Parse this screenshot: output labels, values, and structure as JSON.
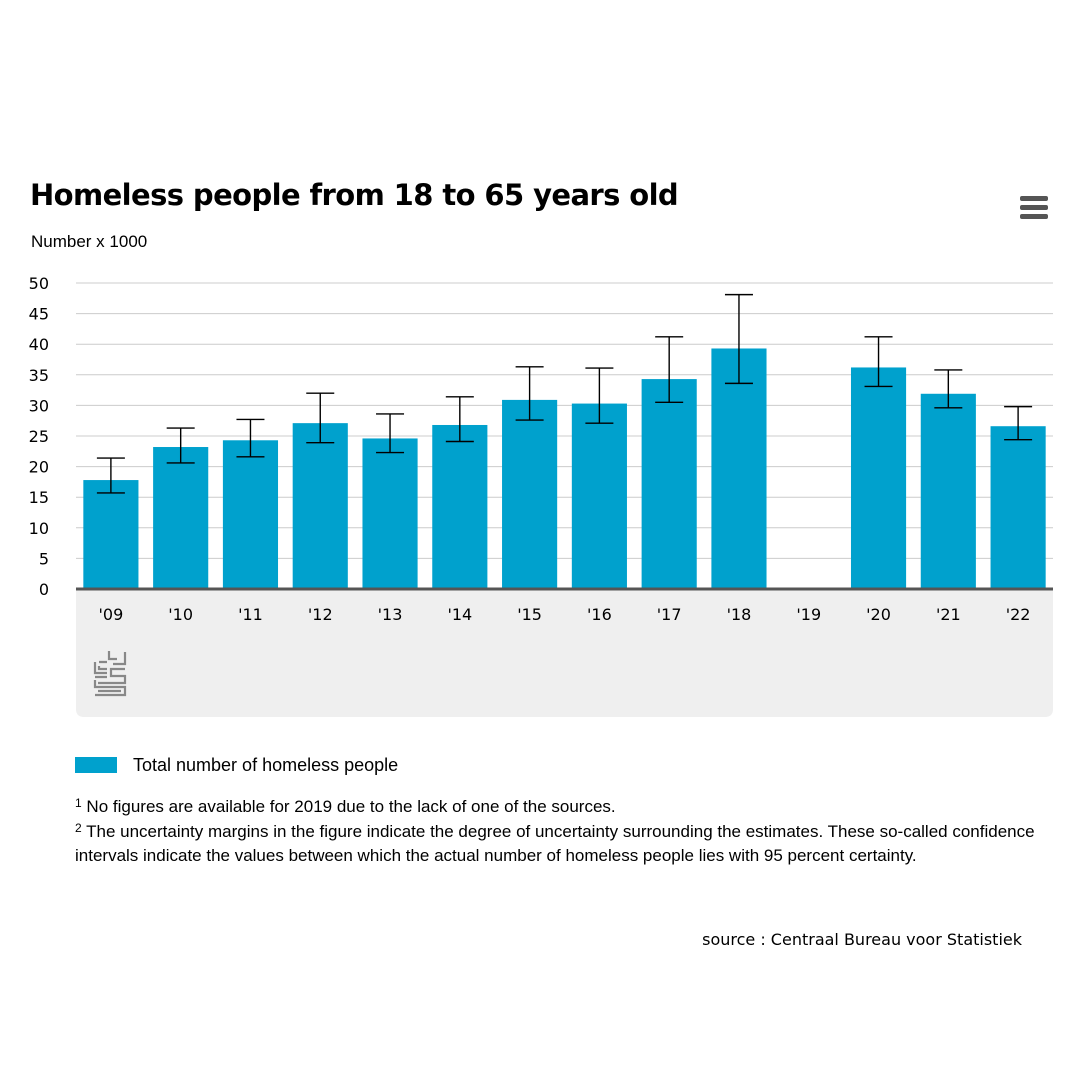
{
  "header": {
    "title": "Homeless people from 18 to 65 years old",
    "menu_icon": "hamburger-menu-icon"
  },
  "colors": {
    "bar": "#00a1cd",
    "plot_background": "#efefef",
    "gridline": "#cccccc",
    "axis": "#555555",
    "error_bar": "#000000",
    "logo": "#888888"
  },
  "logo_icon": "cbs-logo",
  "chart_data": {
    "type": "bar",
    "ylabel": "Number x 1000",
    "ylim": [
      0,
      50
    ],
    "yticks": [
      0,
      5,
      10,
      15,
      20,
      25,
      30,
      35,
      40,
      45,
      50
    ],
    "grid": true,
    "categories": [
      "'09",
      "'10",
      "'11",
      "'12",
      "'13",
      "'14",
      "'15",
      "'16",
      "'17",
      "'18",
      "'19",
      "'20",
      "'21",
      "'22"
    ],
    "series": [
      {
        "name": "Total number of homeless people",
        "values": [
          17.8,
          23.2,
          24.3,
          27.1,
          24.6,
          26.8,
          30.9,
          30.3,
          34.3,
          39.3,
          null,
          36.2,
          31.9,
          26.6
        ],
        "error_low": [
          15.7,
          20.6,
          21.6,
          23.9,
          22.3,
          24.1,
          27.6,
          27.1,
          30.5,
          33.6,
          null,
          33.1,
          29.6,
          24.4
        ],
        "error_high": [
          21.4,
          26.3,
          27.7,
          32.0,
          28.6,
          31.4,
          36.3,
          36.1,
          41.2,
          48.1,
          null,
          41.2,
          35.8,
          29.8
        ]
      }
    ],
    "legend": "bottom-left"
  },
  "notes": [
    {
      "marker": "1",
      "text": "No figures are available for 2019 due to the lack of one of the sources."
    },
    {
      "marker": "2",
      "text": "The uncertainty margins in the figure indicate the degree of uncertainty surrounding the estimates. These so-called confidence intervals indicate the values between which the actual number of homeless people lies with 95 percent certainty."
    }
  ],
  "source": "source : Centraal Bureau voor Statistiek"
}
